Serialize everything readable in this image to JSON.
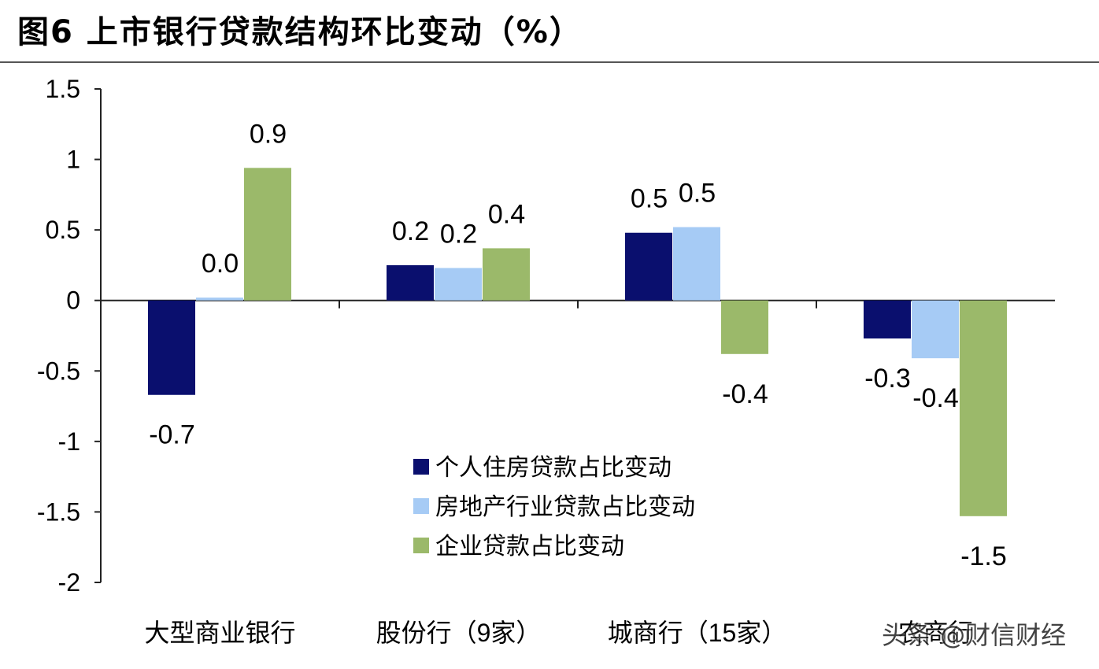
{
  "title": "图6  上市银行贷款结构环比变动（%）",
  "watermark": "头条 @财信财经",
  "chart_data": {
    "type": "bar",
    "title": "图6  上市银行贷款结构环比变动（%）",
    "xlabel": "",
    "ylabel": "",
    "ylim": [
      -2,
      1.5
    ],
    "yticks": [
      -2,
      -1.5,
      -1,
      -0.5,
      0,
      0.5,
      1,
      1.5
    ],
    "ytick_labels": [
      "-2",
      "-1.5",
      "-1",
      "-0.5",
      "0",
      "0.5",
      "1",
      "1.5"
    ],
    "categories": [
      "大型商业银行",
      "股份行（9家）",
      "城商行（15家）",
      "农商行"
    ],
    "grid": false,
    "legend_position": "center",
    "series": [
      {
        "name": "个人住房贷款占比变动",
        "color": "#0a0f6e",
        "values": [
          -0.67,
          0.25,
          0.48,
          -0.27
        ],
        "labels": [
          "-0.7",
          "0.2",
          "0.5",
          "-0.3"
        ]
      },
      {
        "name": "房地产行业贷款占比变动",
        "color": "#a6cbf5",
        "values": [
          0.02,
          0.23,
          0.52,
          -0.41
        ],
        "labels": [
          "0.0",
          "0.2",
          "0.5",
          "-0.4"
        ]
      },
      {
        "name": "企业贷款占比变动",
        "color": "#9bb96a",
        "values": [
          0.94,
          0.37,
          -0.38,
          -1.53
        ],
        "labels": [
          "0.9",
          "0.4",
          "-0.4",
          "-1.5"
        ]
      }
    ]
  }
}
